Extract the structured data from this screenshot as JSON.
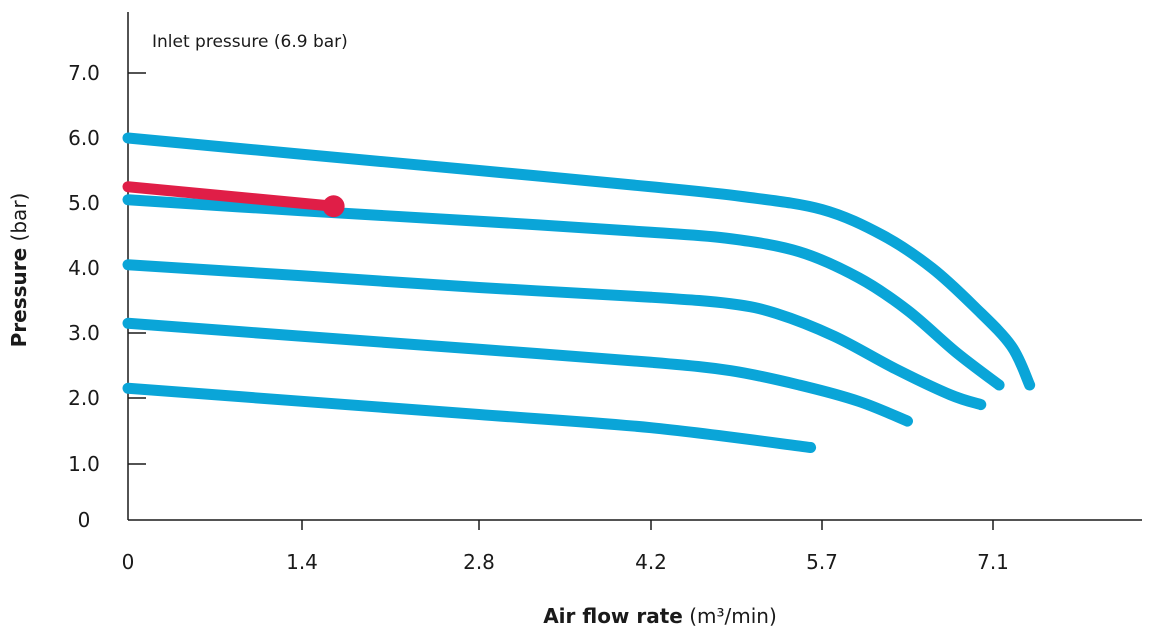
{
  "chart_data": {
    "type": "line",
    "annotation": "Inlet pressure (6.9 bar)",
    "xlabel_bold": "Air flow rate",
    "xlabel_unit": " (m³/min)",
    "ylabel_bold": "Pressure",
    "ylabel_unit": " (bar)",
    "x_ticks": [
      "0",
      "1.4",
      "2.8",
      "4.2",
      "5.7",
      "7.1"
    ],
    "y_ticks": [
      "0",
      "1.0",
      "2.0",
      "3.0",
      "4.0",
      "5.0",
      "6.0",
      "7.0"
    ],
    "grid": false,
    "colors": {
      "series": "#0aa5d8",
      "highlight": "#e01e47",
      "axis": "#1a1a1a"
    },
    "series": [
      {
        "points": [
          [
            0,
            6.0
          ],
          [
            1.4,
            5.75
          ],
          [
            2.8,
            5.5
          ],
          [
            4.2,
            5.25
          ],
          [
            5.0,
            5.1
          ],
          [
            5.7,
            4.9
          ],
          [
            6.2,
            4.5
          ],
          [
            6.6,
            4.0
          ],
          [
            6.95,
            3.4
          ],
          [
            7.25,
            2.8
          ],
          [
            7.4,
            2.2
          ]
        ]
      },
      {
        "points": [
          [
            0,
            5.05
          ],
          [
            1.4,
            4.88
          ],
          [
            2.8,
            4.72
          ],
          [
            4.2,
            4.55
          ],
          [
            4.9,
            4.45
          ],
          [
            5.5,
            4.25
          ],
          [
            6.0,
            3.85
          ],
          [
            6.4,
            3.35
          ],
          [
            6.8,
            2.7
          ],
          [
            7.15,
            2.2
          ]
        ]
      },
      {
        "points": [
          [
            0,
            4.05
          ],
          [
            1.4,
            3.88
          ],
          [
            2.8,
            3.7
          ],
          [
            4.2,
            3.55
          ],
          [
            4.9,
            3.45
          ],
          [
            5.3,
            3.3
          ],
          [
            5.8,
            2.95
          ],
          [
            6.3,
            2.45
          ],
          [
            6.75,
            2.05
          ],
          [
            7.0,
            1.9
          ]
        ]
      },
      {
        "points": [
          [
            0,
            3.15
          ],
          [
            1.4,
            2.95
          ],
          [
            2.8,
            2.75
          ],
          [
            4.2,
            2.55
          ],
          [
            4.9,
            2.42
          ],
          [
            5.5,
            2.2
          ],
          [
            6.0,
            1.95
          ],
          [
            6.4,
            1.65
          ]
        ]
      },
      {
        "points": [
          [
            0,
            2.15
          ],
          [
            1.4,
            1.95
          ],
          [
            2.8,
            1.75
          ],
          [
            4.2,
            1.55
          ],
          [
            5.6,
            1.25
          ]
        ]
      }
    ],
    "highlight": {
      "points": [
        [
          0,
          5.25
        ],
        [
          1.65,
          4.95
        ]
      ],
      "marker": [
        1.65,
        4.95
      ]
    }
  }
}
